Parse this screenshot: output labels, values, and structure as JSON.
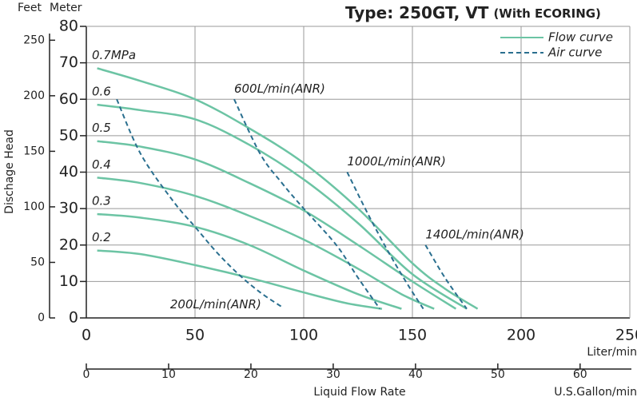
{
  "chart_data": {
    "type": "line",
    "title": "Type: 250GT, VT",
    "subtitle": "(With ECORING)",
    "y_label": "Dischage Head",
    "y_unit": "Meter",
    "y2_unit": "Feet",
    "x_label": "Liquid Flow Rate",
    "x_unit": "Liter/min",
    "x2_unit": "U.S.Gallon/min",
    "xlim": [
      0,
      250
    ],
    "xticks": [
      0,
      50,
      100,
      150,
      200,
      250
    ],
    "x2lim": [
      0,
      66.04
    ],
    "x2ticks": [
      0,
      10,
      20,
      30,
      40,
      50,
      60
    ],
    "ylim": [
      0,
      80
    ],
    "yticks": [
      0,
      10,
      20,
      30,
      40,
      50,
      60,
      70,
      80
    ],
    "y2lim": [
      0,
      262.47
    ],
    "y2ticks": [
      0,
      50,
      100,
      150,
      200,
      250
    ],
    "grid": true,
    "legend": [
      {
        "label": "Flow curve",
        "color": "#6cc4a4",
        "style": "solid"
      },
      {
        "label": "Air curve",
        "color": "#2a6f8f",
        "style": "dashed"
      }
    ],
    "series": [
      {
        "name": "0.7MPa",
        "style": "solid",
        "color": "#6cc4a4",
        "x": [
          5,
          25,
          50,
          75,
          100,
          125,
          150,
          165,
          180
        ],
        "values": [
          68.5,
          65,
          60,
          52,
          42.5,
          30,
          15,
          8,
          2.5
        ]
      },
      {
        "name": "0.6",
        "style": "solid",
        "color": "#6cc4a4",
        "x": [
          5,
          25,
          50,
          75,
          100,
          125,
          150,
          175
        ],
        "values": [
          58.5,
          57,
          54.5,
          47.5,
          38,
          26,
          12,
          2.5
        ]
      },
      {
        "name": "0.5",
        "style": "solid",
        "color": "#6cc4a4",
        "x": [
          5,
          25,
          50,
          75,
          100,
          125,
          150,
          170
        ],
        "values": [
          48.5,
          47,
          43.5,
          37,
          29.5,
          20,
          10,
          2.5
        ]
      },
      {
        "name": "0.4",
        "style": "solid",
        "color": "#6cc4a4",
        "x": [
          5,
          25,
          50,
          75,
          100,
          125,
          145,
          160
        ],
        "values": [
          38.5,
          37,
          33.5,
          28,
          21.5,
          13.5,
          6.5,
          2.5
        ]
      },
      {
        "name": "0.3",
        "style": "solid",
        "color": "#6cc4a4",
        "x": [
          5,
          25,
          50,
          75,
          100,
          125,
          145
        ],
        "values": [
          28.5,
          27.5,
          25,
          20,
          13,
          6.5,
          2.5
        ]
      },
      {
        "name": "0.2",
        "style": "solid",
        "color": "#6cc4a4",
        "x": [
          5,
          25,
          50,
          75,
          100,
          120,
          136
        ],
        "values": [
          18.5,
          17.5,
          14.5,
          11,
          7,
          4,
          2.5
        ]
      },
      {
        "name": "200L/min(ANR)",
        "style": "dashed",
        "color": "#2a6f8f",
        "x": [
          14,
          25,
          40,
          50,
          60,
          70,
          80,
          90
        ],
        "values": [
          60,
          45,
          32,
          25,
          18,
          12,
          7,
          3
        ]
      },
      {
        "name": "600L/min(ANR)",
        "style": "dashed",
        "color": "#2a6f8f",
        "x": [
          68,
          80,
          90,
          100,
          115,
          125,
          135
        ],
        "values": [
          60,
          45,
          37,
          30,
          20,
          11,
          2.5
        ]
      },
      {
        "name": "1000L/min(ANR)",
        "style": "dashed",
        "color": "#2a6f8f",
        "x": [
          120,
          130,
          140,
          148,
          155
        ],
        "values": [
          40,
          28,
          17,
          9,
          2.5
        ]
      },
      {
        "name": "1400L/min(ANR)",
        "style": "dashed",
        "color": "#2a6f8f",
        "x": [
          156,
          165,
          175
        ],
        "values": [
          20,
          11,
          2.5
        ]
      }
    ]
  }
}
